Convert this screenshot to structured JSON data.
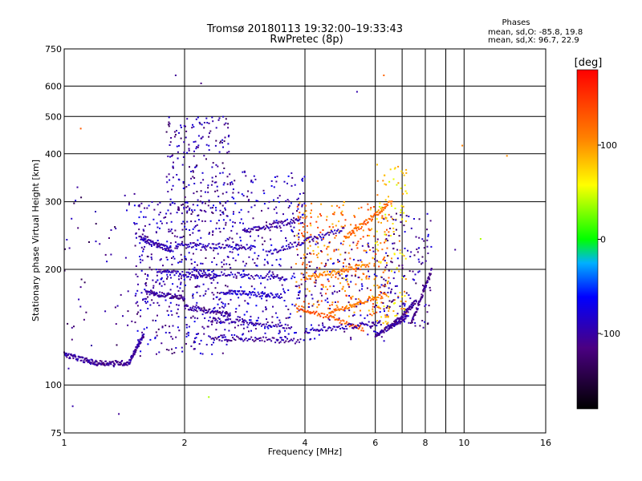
{
  "chart_data": {
    "type": "scatter",
    "title": "Tromsø 20180113 19:32:00–19:33:43",
    "subtitle": "RwPretec (8p)",
    "xlabel": "Frequency [MHz]",
    "ylabel": "Stationary phase Virtual Height [km]",
    "x_scale": "log",
    "y_scale": "log",
    "xlim": [
      1,
      16
    ],
    "ylim": [
      75,
      750
    ],
    "x_ticks": [
      1,
      2,
      4,
      6,
      8,
      10,
      16
    ],
    "x_tick_labels": [
      "1",
      "2",
      "4",
      "6",
      "8",
      "10",
      "16"
    ],
    "x_gridlines": [
      2,
      4,
      6,
      7,
      8,
      9,
      10
    ],
    "y_ticks": [
      75,
      100,
      200,
      300,
      400,
      500,
      600,
      750
    ],
    "y_tick_labels": [
      "75",
      "100",
      "200",
      "300",
      "400",
      "500",
      "600",
      "750"
    ],
    "grid": true,
    "stats": {
      "heading": "Phases",
      "line_o": "mean, sd,O: -85.8, 19.8",
      "line_x": "mean, sd,X:  96.7, 22.9"
    },
    "colorbar": {
      "label": "[deg]",
      "range": [
        -180,
        180
      ],
      "ticks": [
        100,
        0,
        -100
      ],
      "tick_labels": [
        "100",
        "0",
        "-100"
      ]
    },
    "traces": [
      {
        "x": [
          1.0,
          1.2
        ],
        "y": [
          120,
          114
        ],
        "phase": -105
      },
      {
        "x": [
          1.2,
          1.45
        ],
        "y": [
          114,
          114
        ],
        "phase": -112
      },
      {
        "x": [
          1.45,
          1.58
        ],
        "y": [
          114,
          135
        ],
        "phase": -105
      },
      {
        "x": [
          1.55,
          1.85
        ],
        "y": [
          240,
          225
        ],
        "phase": -98
      },
      {
        "x": [
          1.6,
          2.0
        ],
        "y": [
          175,
          168
        ],
        "phase": -110
      },
      {
        "x": [
          1.7,
          2.4
        ],
        "y": [
          198,
          190
        ],
        "phase": -100
      },
      {
        "x": [
          1.9,
          3.0
        ],
        "y": [
          232,
          228
        ],
        "phase": -95
      },
      {
        "x": [
          2.0,
          2.6
        ],
        "y": [
          160,
          152
        ],
        "phase": -108
      },
      {
        "x": [
          2.1,
          3.6
        ],
        "y": [
          198,
          188
        ],
        "phase": -92
      },
      {
        "x": [
          2.3,
          3.7
        ],
        "y": [
          148,
          142
        ],
        "phase": -100
      },
      {
        "x": [
          2.3,
          3.9
        ],
        "y": [
          133,
          130
        ],
        "phase": -110
      },
      {
        "x": [
          2.5,
          3.5
        ],
        "y": [
          175,
          170
        ],
        "phase": -88
      },
      {
        "x": [
          2.8,
          3.9
        ],
        "y": [
          250,
          270
        ],
        "phase": -105
      },
      {
        "x": [
          3.2,
          5.0
        ],
        "y": [
          220,
          255
        ],
        "phase": -95
      },
      {
        "x": [
          3.8,
          5.6
        ],
        "y": [
          160,
          140
        ],
        "phase": 130
      },
      {
        "x": [
          4.0,
          5.8
        ],
        "y": [
          190,
          205
        ],
        "phase": 115
      },
      {
        "x": [
          4.0,
          6.2
        ],
        "y": [
          138,
          145
        ],
        "phase": -100
      },
      {
        "x": [
          4.6,
          6.4
        ],
        "y": [
          155,
          172
        ],
        "phase": 120
      },
      {
        "x": [
          5.0,
          6.6
        ],
        "y": [
          240,
          300
        ],
        "phase": 125
      },
      {
        "x": [
          6.0,
          7.2
        ],
        "y": [
          135,
          150
        ],
        "phase": -105
      },
      {
        "x": [
          6.5,
          7.6
        ],
        "y": [
          140,
          165
        ],
        "phase": -110
      },
      {
        "x": [
          7.4,
          8.3
        ],
        "y": [
          145,
          200
        ],
        "phase": -112
      }
    ],
    "clouds": [
      {
        "x": [
          1.5,
          2.6
        ],
        "y": [
          120,
          300
        ],
        "phase": -100,
        "n": 500
      },
      {
        "x": [
          1.8,
          2.6
        ],
        "y": [
          280,
          500
        ],
        "phase": -105,
        "n": 200
      },
      {
        "x": [
          2.6,
          4.0
        ],
        "y": [
          130,
          360
        ],
        "phase": -95,
        "n": 320
      },
      {
        "x": [
          3.8,
          6.5
        ],
        "y": [
          150,
          300
        ],
        "phase": 115,
        "n": 320
      },
      {
        "x": [
          4.0,
          6.5
        ],
        "y": [
          130,
          240
        ],
        "phase": -100,
        "n": 160
      },
      {
        "x": [
          6.0,
          7.2
        ],
        "y": [
          140,
          380
        ],
        "phase": 80,
        "n": 120
      },
      {
        "x": [
          6.3,
          8.3
        ],
        "y": [
          140,
          280
        ],
        "phase": -105,
        "n": 130
      },
      {
        "x": [
          1.0,
          1.55
        ],
        "y": [
          110,
          330
        ],
        "phase": -110,
        "n": 60
      }
    ],
    "outliers": [
      {
        "x": 1.05,
        "y": 88,
        "phase": -100
      },
      {
        "x": 1.37,
        "y": 84,
        "phase": -110
      },
      {
        "x": 2.3,
        "y": 93,
        "phase": 40
      },
      {
        "x": 2.2,
        "y": 610,
        "phase": -120
      },
      {
        "x": 1.9,
        "y": 640,
        "phase": -110
      },
      {
        "x": 5.4,
        "y": 580,
        "phase": -100
      },
      {
        "x": 6.3,
        "y": 640,
        "phase": 125
      },
      {
        "x": 9.9,
        "y": 420,
        "phase": 110
      },
      {
        "x": 12.8,
        "y": 395,
        "phase": 105
      },
      {
        "x": 11.0,
        "y": 240,
        "phase": 40
      },
      {
        "x": 9.5,
        "y": 225,
        "phase": -110
      },
      {
        "x": 1.1,
        "y": 465,
        "phase": 130
      }
    ]
  }
}
